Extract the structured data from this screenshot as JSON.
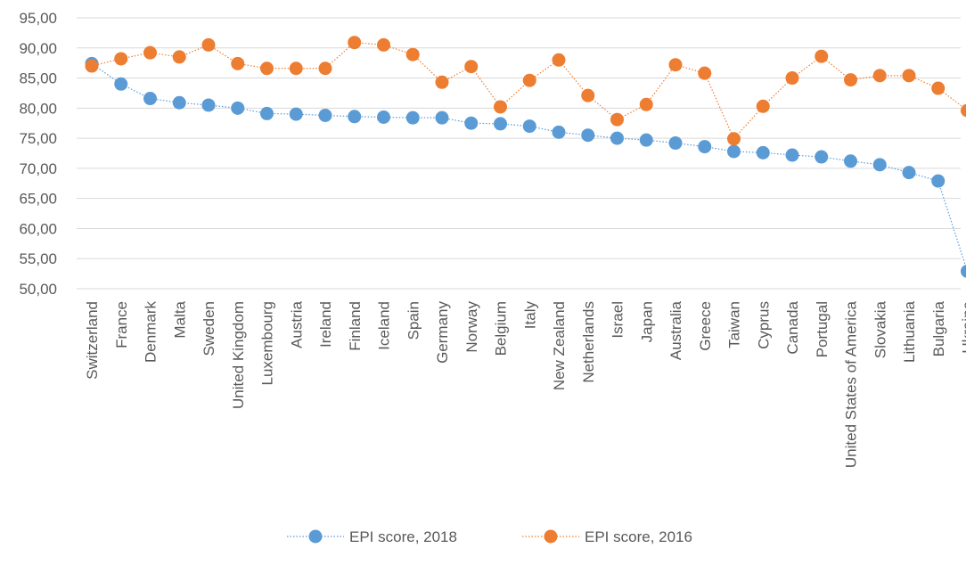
{
  "chart_data": {
    "type": "line",
    "title": "",
    "xlabel": "",
    "ylabel": "",
    "ylim": [
      50,
      95
    ],
    "ytick_step": 5,
    "ytick_labels": [
      "50,00",
      "55,00",
      "60,00",
      "65,00",
      "70,00",
      "75,00",
      "80,00",
      "85,00",
      "90,00",
      "95,00"
    ],
    "grid": true,
    "legend_position": "bottom",
    "categories": [
      "Switzerland",
      "France",
      "Denmark",
      "Malta",
      "Sweden",
      "United Kingdom",
      "Luxembourg",
      "Austria",
      "Ireland",
      "Finland",
      "Iceland",
      "Spain",
      "Germany",
      "Norway",
      "Belgium",
      "Italy",
      "New Zealand",
      "Netherlands",
      "Israel",
      "Japan",
      "Australia",
      "Greece",
      "Taiwan",
      "Cyprus",
      "Canada",
      "Portugal",
      "United States of America",
      "Slovakia",
      "Lithuania",
      "Bulgaria",
      "Ukraine"
    ],
    "series": [
      {
        "name": "EPI score, 2018",
        "color": "#5B9BD5",
        "values": [
          87.4,
          84.0,
          81.6,
          80.9,
          80.5,
          80.0,
          79.1,
          79.0,
          78.8,
          78.6,
          78.5,
          78.4,
          78.4,
          77.5,
          77.4,
          77.0,
          76.0,
          75.5,
          75.0,
          74.7,
          74.2,
          73.6,
          72.8,
          72.6,
          72.2,
          71.9,
          71.2,
          70.6,
          69.3,
          67.9,
          52.9
        ]
      },
      {
        "name": "EPI score, 2016",
        "color": "#ED7D31",
        "values": [
          87.0,
          88.2,
          89.2,
          88.5,
          90.5,
          87.4,
          86.6,
          86.6,
          86.6,
          90.9,
          90.5,
          88.9,
          84.3,
          86.9,
          80.2,
          84.6,
          88.0,
          82.1,
          78.1,
          80.6,
          87.2,
          85.8,
          74.9,
          80.3,
          85.0,
          88.6,
          84.7,
          85.4,
          85.4,
          83.3,
          79.6
        ]
      }
    ]
  }
}
